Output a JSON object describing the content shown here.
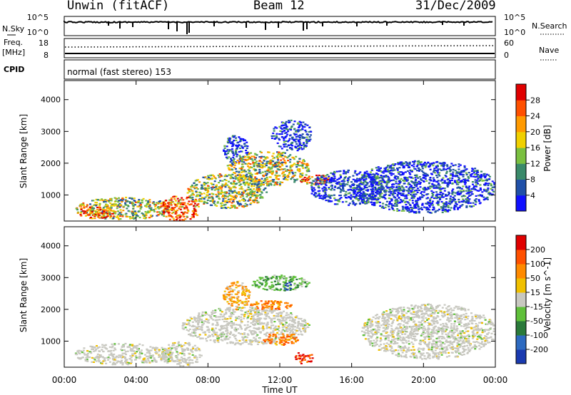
{
  "header": {
    "station": "Unwin (fitACF)",
    "beam": "Beam 12",
    "date": "31/Dec/2009"
  },
  "summary_panels": {
    "nsky_label": "N.Sky",
    "nsky_ticks": [
      "10^5",
      "10^0"
    ],
    "nsearch_label": "N.Search",
    "nsearch_ticks": [
      "10^5",
      "10^0"
    ],
    "freq_label_line1": "Freq.",
    "freq_label_line2": "[MHz]",
    "freq_ticks": [
      "18",
      "8"
    ],
    "nave_label": "Nave",
    "nave_ticks": [
      "60",
      "0"
    ],
    "cpid_label": "CPID",
    "cpid_text": "normal (fast stereo) 153"
  },
  "colors": {
    "power_scale": [
      "#1010ff",
      "#2050a8",
      "#3a8a6a",
      "#7ac040",
      "#f0d000",
      "#ff9a00",
      "#ff5000",
      "#e00000"
    ],
    "velocity_scale": [
      "#1a3ab0",
      "#2d6ac0",
      "#2a7a3a",
      "#5fc03a",
      "#c8c8c0",
      "#f0c000",
      "#ff8a00",
      "#ff5000",
      "#e00000"
    ]
  },
  "chart_data": [
    {
      "type": "heatmap",
      "panel": "power",
      "xlabel": "",
      "ylabel": "Slant Range [km]",
      "xlim": [
        "00:00",
        "24:00"
      ],
      "ylim": [
        180,
        4600
      ],
      "y_ticks": [
        "1000",
        "2000",
        "3000",
        "4000"
      ],
      "colorbar_label": "Power [dB]",
      "colorbar_ticks": [
        "4",
        "8",
        "12",
        "16",
        "20",
        "24",
        "28"
      ],
      "colorbar_range": [
        0,
        30
      ],
      "regions": [
        {
          "t": [
            0.6,
            6.0
          ],
          "r": [
            250,
            950
          ],
          "level": "medium"
        },
        {
          "t": [
            0.7,
            2.8
          ],
          "r": [
            280,
            650
          ],
          "level": "high"
        },
        {
          "t": [
            5.3,
            7.5
          ],
          "r": [
            180,
            1000
          ],
          "level": "high"
        },
        {
          "t": [
            6.8,
            11.3
          ],
          "r": [
            600,
            1700
          ],
          "level": "medium"
        },
        {
          "t": [
            8.8,
            10.2
          ],
          "r": [
            2000,
            2900
          ],
          "level": "low"
        },
        {
          "t": [
            9.0,
            13.6
          ],
          "r": [
            1300,
            2400
          ],
          "level": "medium"
        },
        {
          "t": [
            11.5,
            13.8
          ],
          "r": [
            2400,
            3400
          ],
          "level": "low"
        },
        {
          "t": [
            13.0,
            15.0
          ],
          "r": [
            1350,
            1650
          ],
          "level": "high"
        },
        {
          "t": [
            13.6,
            18.0
          ],
          "r": [
            700,
            1800
          ],
          "level": "low"
        },
        {
          "t": [
            16.0,
            24.0
          ],
          "r": [
            450,
            2100
          ],
          "level": "low"
        }
      ]
    },
    {
      "type": "heatmap",
      "panel": "velocity",
      "xlabel": "Time UT",
      "ylabel": "Slant Range [km]",
      "x_ticks": [
        "00:00",
        "04:00",
        "08:00",
        "12:00",
        "16:00",
        "20:00",
        "00:00"
      ],
      "xlim": [
        "00:00",
        "24:00"
      ],
      "ylim": [
        180,
        4600
      ],
      "y_ticks": [
        "1000",
        "2000",
        "3000",
        "4000"
      ],
      "colorbar_label": "Velocity [m s^-1]",
      "colorbar_ticks": [
        "200",
        "100",
        "50",
        "15",
        "-15",
        "-50",
        "-100",
        "-200"
      ],
      "colorbar_range": [
        -250,
        250
      ],
      "regions": [
        {
          "t": [
            0.5,
            6.0
          ],
          "r": [
            280,
            950
          ],
          "v": "near-zero"
        },
        {
          "t": [
            5.3,
            7.6
          ],
          "r": [
            200,
            1000
          ],
          "v": "near-zero"
        },
        {
          "t": [
            6.5,
            13.6
          ],
          "r": [
            900,
            2100
          ],
          "v": "near-zero"
        },
        {
          "t": [
            8.8,
            10.3
          ],
          "r": [
            2000,
            2900
          ],
          "v": "negative-small"
        },
        {
          "t": [
            10.2,
            12.6
          ],
          "r": [
            2000,
            2300
          ],
          "v": "negative"
        },
        {
          "t": [
            10.3,
            13.6
          ],
          "r": [
            2600,
            3100
          ],
          "v": "positive-small"
        },
        {
          "t": [
            12.2,
            12.6
          ],
          "r": [
            2600,
            2900
          ],
          "v": "positive"
        },
        {
          "t": [
            12.8,
            13.8
          ],
          "r": [
            300,
            700
          ],
          "v": "negative-large"
        },
        {
          "t": [
            11.0,
            13.0
          ],
          "r": [
            900,
            1300
          ],
          "v": "negative"
        },
        {
          "t": [
            16.5,
            24.0
          ],
          "r": [
            450,
            2200
          ],
          "v": "near-zero"
        }
      ]
    }
  ]
}
